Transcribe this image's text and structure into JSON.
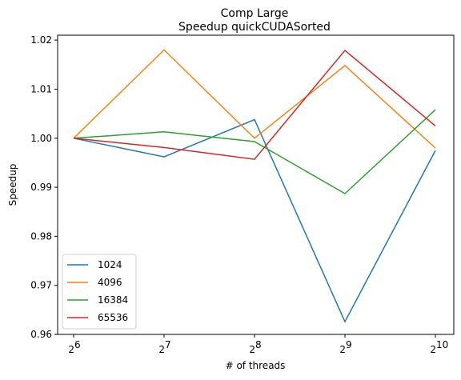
{
  "chart_data": {
    "type": "line",
    "title": "Comp Large",
    "subtitle": "Speedup quickCUDASorted",
    "xlabel": "# of threads",
    "ylabel": "Speedup",
    "x_base": "2",
    "x_exponents": [
      "6",
      "7",
      "8",
      "9",
      "10"
    ],
    "ylim": [
      0.96,
      1.021
    ],
    "yticks": [
      "0.96",
      "0.97",
      "0.98",
      "0.99",
      "1.00",
      "1.01",
      "1.02"
    ],
    "ytick_values": [
      0.96,
      0.97,
      0.98,
      0.99,
      1.0,
      1.01,
      1.02
    ],
    "grid": false,
    "legend_position": "lower-left",
    "series": [
      {
        "name": "1024",
        "color": "#1f77b4",
        "values": [
          1.0,
          0.9962,
          1.0038,
          0.9626,
          0.9975
        ]
      },
      {
        "name": "4096",
        "color": "#ff7f0e",
        "values": [
          1.0,
          1.018,
          1.0,
          1.0148,
          0.998
        ]
      },
      {
        "name": "16384",
        "color": "#2ca02c",
        "values": [
          1.0,
          1.0013,
          0.9993,
          0.9887,
          1.0058
        ]
      },
      {
        "name": "65536",
        "color": "#d62728",
        "values": [
          1.0,
          0.9981,
          0.9957,
          1.0179,
          1.0025
        ]
      }
    ]
  }
}
